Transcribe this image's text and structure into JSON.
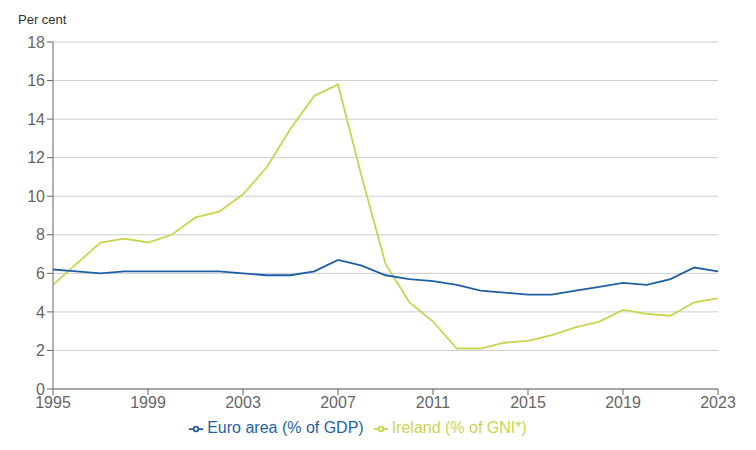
{
  "chart_data": {
    "type": "line",
    "ylabel": "Per cent",
    "x": [
      1995,
      1996,
      1997,
      1998,
      1999,
      2000,
      2001,
      2002,
      2003,
      2004,
      2005,
      2006,
      2007,
      2008,
      2009,
      2010,
      2011,
      2012,
      2013,
      2014,
      2015,
      2016,
      2017,
      2018,
      2019,
      2020,
      2021,
      2022,
      2023
    ],
    "series": [
      {
        "name": "Ireland (% of GNI*)",
        "color": "#c8d44e",
        "values": [
          5.4,
          6.5,
          7.6,
          7.8,
          7.6,
          8.0,
          8.9,
          9.2,
          10.1,
          11.5,
          13.5,
          15.2,
          15.8,
          11.0,
          6.5,
          4.5,
          3.5,
          2.1,
          2.1,
          2.4,
          2.5,
          2.8,
          3.2,
          3.5,
          4.1,
          3.9,
          3.8,
          4.5,
          4.7
        ]
      },
      {
        "name": "Euro area (% of GDP)",
        "color": "#1f5fa6",
        "values": [
          6.2,
          6.1,
          6.0,
          6.1,
          6.1,
          6.1,
          6.1,
          6.1,
          6.0,
          5.9,
          5.9,
          6.1,
          6.7,
          6.4,
          5.9,
          5.7,
          5.6,
          5.4,
          5.1,
          5.0,
          4.9,
          4.9,
          5.1,
          5.3,
          5.5,
          5.4,
          5.7,
          6.3,
          6.1
        ]
      }
    ],
    "xlim": [
      1995,
      2023
    ],
    "xticks": [
      1995,
      1999,
      2003,
      2007,
      2011,
      2015,
      2019,
      2023
    ],
    "ylim": [
      0,
      18
    ],
    "yticks": [
      0,
      2,
      4,
      6,
      8,
      10,
      12,
      14,
      16,
      18
    ],
    "grid": true,
    "legend": "bottom"
  }
}
